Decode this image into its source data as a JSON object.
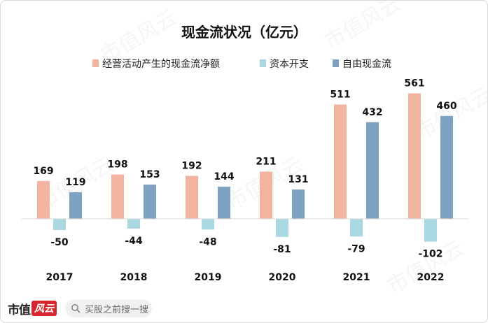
{
  "chart_data": {
    "type": "bar",
    "title": "现金流状况（亿元）",
    "categories": [
      "2017",
      "2018",
      "2019",
      "2020",
      "2021",
      "2022"
    ],
    "series": [
      {
        "name": "经营活动产生的现金流净额",
        "values": [
          169,
          198,
          192,
          211,
          511,
          561
        ],
        "color": "#f2b3a0"
      },
      {
        "name": "资本开支",
        "values": [
          -50,
          -44,
          -48,
          -81,
          -79,
          -102
        ],
        "color": "#a9d8e0"
      },
      {
        "name": "自由现金流",
        "values": [
          119,
          153,
          144,
          131,
          432,
          460
        ],
        "color": "#7fa2c3"
      }
    ],
    "ylim": [
      -110,
      600
    ],
    "grid": false,
    "legend": "top"
  },
  "footer": {
    "logo_text": "市值",
    "logo_badge": "风云",
    "search_placeholder": "买股之前搜一搜"
  },
  "watermark_text": "市值风云"
}
